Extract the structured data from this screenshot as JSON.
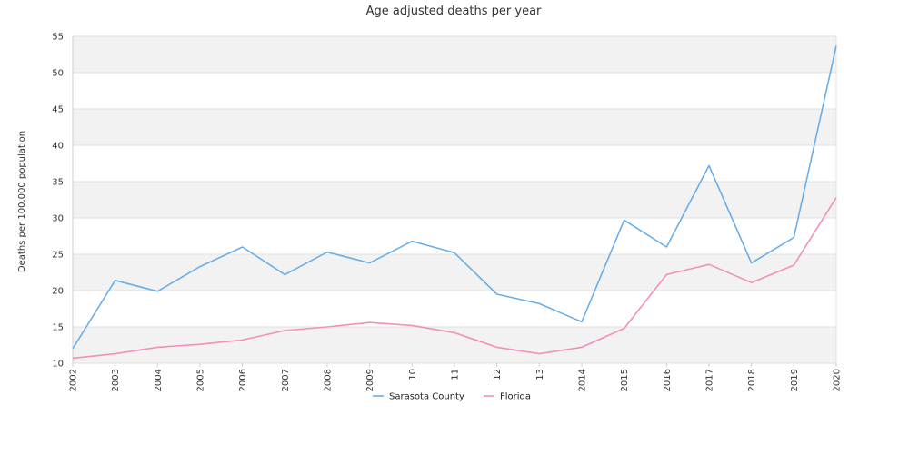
{
  "chart_data": {
    "type": "line",
    "title": "Age adjusted deaths per year",
    "xlabel": "",
    "ylabel": "Deaths per 100,000 population",
    "ylim": [
      10,
      55
    ],
    "yticks": [
      10,
      15,
      20,
      25,
      30,
      35,
      40,
      45,
      50,
      55
    ],
    "grid": "horizontal bands",
    "legend": "bottom-center",
    "categories": [
      "2002",
      "2003",
      "2004",
      "2005",
      "2006",
      "2007",
      "2008",
      "2009",
      "2010",
      "2011",
      "2012",
      "2013",
      "2014",
      "2015",
      "2016",
      "2017",
      "2018",
      "2019",
      "2020"
    ],
    "x_tick_labels": [
      "2002",
      "2003",
      "2004",
      "2005",
      "2006",
      "2007",
      "2008",
      "2009",
      "10",
      "11",
      "12",
      "13",
      "2014",
      "2015",
      "2016",
      "2017",
      "2018",
      "2019",
      "2020"
    ],
    "series": [
      {
        "name": "Sarasota County",
        "color": "#6aaee8",
        "values": [
          12.0,
          21.4,
          19.9,
          23.3,
          26.0,
          22.2,
          25.3,
          23.8,
          26.8,
          25.2,
          19.5,
          18.2,
          15.7,
          29.7,
          26.0,
          37.2,
          23.8,
          27.3,
          53.7
        ]
      },
      {
        "name": "Florida",
        "color": "#f28fbc",
        "values": [
          10.7,
          11.3,
          12.2,
          12.6,
          13.2,
          14.5,
          15.0,
          15.6,
          15.2,
          14.2,
          12.2,
          11.3,
          12.2,
          14.8,
          22.2,
          23.6,
          21.1,
          23.5,
          32.8
        ]
      }
    ]
  }
}
